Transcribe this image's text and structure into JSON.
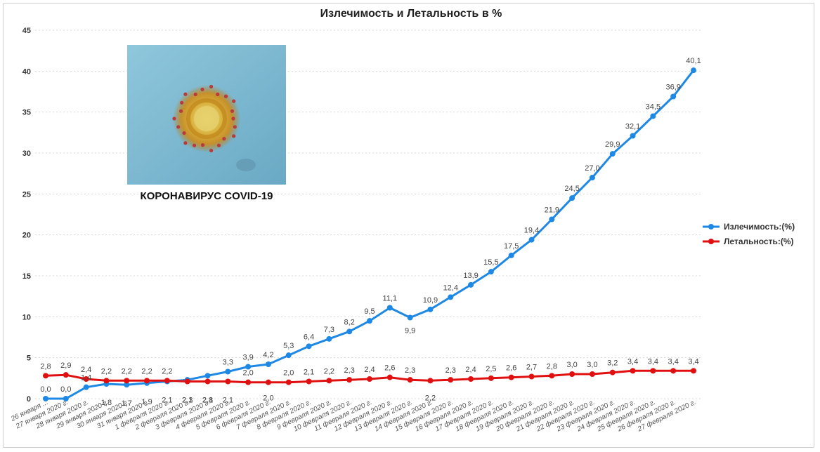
{
  "chart_data": {
    "type": "line",
    "title": "Излечимость и Летальность в %",
    "ylim": [
      0,
      45
    ],
    "yticks": [
      0,
      5,
      10,
      15,
      20,
      25,
      30,
      35,
      40,
      45
    ],
    "grid": true,
    "legend_position": "right",
    "categories": [
      "26 января ...",
      "27 января 2020 г.",
      "28 января 2020 г.",
      "29 января 2020 г.",
      "30 января 2020 г.",
      "31 января 2020 г.",
      "1 февраля 2020 г.",
      "2 февраля 2020 г.",
      "3 февраля 2020 г.",
      "4 февраля 2020 г.",
      "5 февраля 2020 г.",
      "6 февраля 2020 г.",
      "7 февраля 2020 г.",
      "8 февраля 2020 г.",
      "9 февраля 2020 г.",
      "10 февраля 2020 г.",
      "11 февраля 2020 г.",
      "12 февраля 2020 г.",
      "13 февраля 2020 г.",
      "14 февраля 2020 г.",
      "15 февраля 2020 г.",
      "16 февраля 2020 г.",
      "17 февраля 2020 г.",
      "18 февраля 2020 г.",
      "19 февраля 2020 г.",
      "20 февраля 2020 г.",
      "21 февраля 2020 г.",
      "22 февраля 2020 г.",
      "23 февраля 2020 г.",
      "24 февраля 2020 г.",
      "25 февраля 2020 г.",
      "26 февраля 2020 г.",
      "27 февраля 2020 г."
    ],
    "series": [
      {
        "name": "Излечимость:(%)",
        "color": "#1e88e5",
        "values": [
          0.0,
          0.0,
          1.4,
          1.8,
          1.7,
          1.9,
          2.1,
          2.3,
          2.8,
          3.3,
          3.9,
          4.2,
          5.3,
          6.4,
          7.3,
          8.2,
          9.5,
          11.1,
          9.9,
          10.9,
          12.4,
          13.9,
          15.5,
          17.5,
          19.4,
          21.9,
          24.5,
          27.0,
          29.9,
          32.1,
          34.5,
          36.9,
          40.1
        ],
        "labels": [
          "0,0",
          "0,0",
          "1,4",
          "1,8",
          "1,7",
          "1,9",
          "2,1",
          "2,3",
          "2,8",
          "3,3",
          "3,9",
          "4,2",
          "5,3",
          "6,4",
          "7,3",
          "8,2",
          "9,5",
          "11,1",
          "9,9",
          "10,9",
          "12,4",
          "13,9",
          "15,5",
          "17,5",
          "19,4",
          "21,9",
          "24,5",
          "27,0",
          "29,9",
          "32,1",
          "34,5",
          "36,9",
          "40,1"
        ]
      },
      {
        "name": "Летальность:(%)",
        "color": "#e01010",
        "values": [
          2.8,
          2.9,
          2.4,
          2.2,
          2.2,
          2.2,
          2.2,
          2.1,
          2.1,
          2.1,
          2.0,
          2.0,
          2.0,
          2.1,
          2.2,
          2.3,
          2.4,
          2.6,
          2.3,
          2.2,
          2.3,
          2.4,
          2.5,
          2.6,
          2.7,
          2.8,
          3.0,
          3.0,
          3.2,
          3.4,
          3.4,
          3.4,
          3.4
        ],
        "labels": [
          "2,8",
          "2,9",
          "2,4",
          "2,2",
          "2,2",
          "2,2",
          "2,2",
          "2,1",
          "2,1",
          "2,1",
          "2,0",
          "2,0",
          "2,0",
          "2,1",
          "2,2",
          "2,3",
          "2,4",
          "2,6",
          "2,3",
          "2,2",
          "2,3",
          "2,4",
          "2,5",
          "2,6",
          "2,7",
          "2,8",
          "3,0",
          "3,0",
          "3,2",
          "3,4",
          "3,4",
          "3,4",
          "3,4"
        ]
      }
    ]
  },
  "inset": {
    "caption": "КОРОНАВИРУС COVID-19"
  }
}
